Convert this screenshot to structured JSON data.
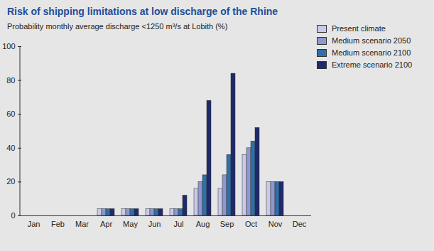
{
  "chart_data": {
    "type": "bar",
    "title": "Risk of shipping limitations at low discharge of the Rhine",
    "subtitle": "Probability monthly average discharge <1250 m³/s at Lobith (%)",
    "categories": [
      "Jan",
      "Feb",
      "Mar",
      "Apr",
      "May",
      "Jun",
      "Jul",
      "Aug",
      "Sep",
      "Oct",
      "Nov",
      "Dec"
    ],
    "series": [
      {
        "name": "Present climate",
        "color": "#c9c9e8",
        "values": [
          0,
          0,
          0,
          4,
          4,
          4,
          4,
          16,
          16,
          36,
          20,
          0
        ]
      },
      {
        "name": "Medium scenario 2050",
        "color": "#8e98cc",
        "values": [
          0,
          0,
          0,
          4,
          4,
          4,
          4,
          20,
          24,
          40,
          20,
          0
        ]
      },
      {
        "name": "Medium scenario 2100",
        "color": "#2f6fab",
        "values": [
          0,
          0,
          0,
          4,
          4,
          4,
          4,
          24,
          36,
          44,
          20,
          0
        ]
      },
      {
        "name": "Extreme scenario 2100",
        "color": "#1f2a6b",
        "values": [
          0,
          0,
          0,
          4,
          4,
          4,
          12,
          68,
          84,
          52,
          20,
          0
        ]
      }
    ],
    "ylim": [
      0,
      100
    ],
    "yticks": [
      0,
      20,
      40,
      60,
      80,
      100
    ],
    "legend": "right"
  }
}
